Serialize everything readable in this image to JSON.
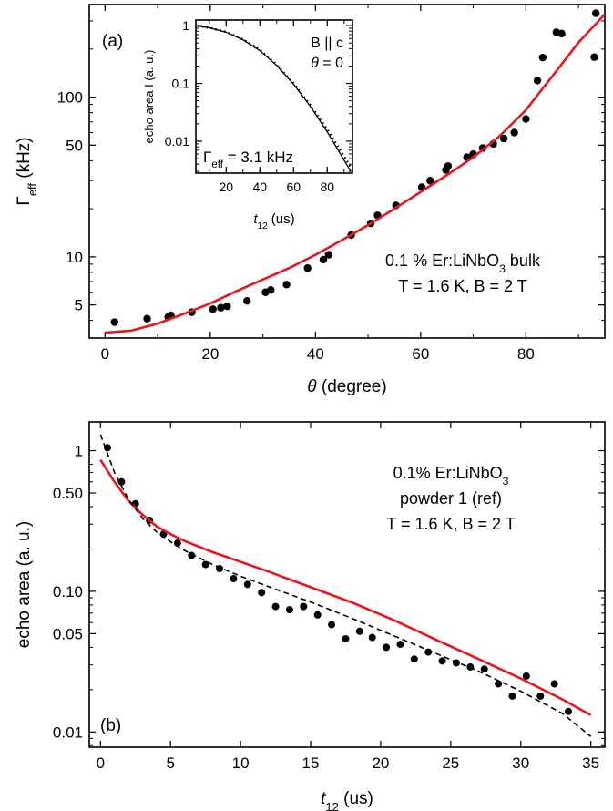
{
  "chart_data": [
    {
      "panel_label": "(a)",
      "type": "scatter",
      "xscale": "linear",
      "yscale": "log",
      "xlabel": "θ (degree)",
      "ylabel": "Γeff (kHz)",
      "xlim": [
        -3,
        95
      ],
      "ylim": [
        3.1,
        380
      ],
      "xticks": [
        0,
        20,
        40,
        60,
        80
      ],
      "yticks": [
        5,
        10,
        50,
        100
      ],
      "annotation": [
        "0.1 % Er:LiNbO3 bulk",
        "T = 1.6 K, B = 2 T"
      ],
      "series": [
        {
          "kind": "points",
          "color": "#000000",
          "x": [
            1.8,
            8,
            12,
            12.5,
            16.5,
            20.5,
            22,
            23.2,
            27,
            30.5,
            31.5,
            34.5,
            38.5,
            41.5,
            42.5,
            46.8,
            50.5,
            51.8,
            55.3,
            60.2,
            61.8,
            64.8,
            65.2,
            68.8,
            70,
            71.8,
            73.8,
            75.8,
            77.8,
            80,
            82.2,
            83.2,
            85.8,
            86.8,
            93,
            93.3
          ],
          "y": [
            3.9,
            4.1,
            4.2,
            4.3,
            4.5,
            4.7,
            4.8,
            4.9,
            5.3,
            6.0,
            6.2,
            6.7,
            8.5,
            9.6,
            10.3,
            13.7,
            16.2,
            18.2,
            21.0,
            27.3,
            30.0,
            35.0,
            37.0,
            42.0,
            44.0,
            48.0,
            51.0,
            55.0,
            60.0,
            73.0,
            127.0,
            177.0,
            255.0,
            250.0,
            178.0,
            335.0
          ]
        },
        {
          "kind": "fit",
          "color": "#e8161c",
          "x": [
            0,
            5,
            10,
            15,
            20,
            25,
            30,
            35,
            40,
            45,
            50,
            55,
            60,
            65,
            70,
            75,
            80,
            85,
            90,
            95
          ],
          "y": [
            3.35,
            3.45,
            3.82,
            4.4,
            5.1,
            6.1,
            7.2,
            8.5,
            10.3,
            12.7,
            15.8,
            20.0,
            25.5,
            32.5,
            42.0,
            57.0,
            83.0,
            135.0,
            220.0,
            330.0
          ]
        }
      ],
      "inset": {
        "type": "line",
        "xscale": "linear",
        "yscale": "log",
        "xlabel": "t12 (us)",
        "ylabel": "echo area I (a. u.)",
        "xlim": [
          2,
          95
        ],
        "ylim": [
          0.0028,
          1.25
        ],
        "xticks": [
          20,
          40,
          60,
          80
        ],
        "yticks": [
          0.01,
          0.1,
          1
        ],
        "ytick_labels": [
          "0.01",
          "0.1",
          "1"
        ],
        "annotation": [
          "B || c",
          "θ = 0",
          "Γeff = 3.1 kHz"
        ],
        "series": [
          {
            "kind": "dotted-data",
            "color": "#000000",
            "x": [
              3,
              10,
              20,
              30,
              40,
              50,
              60,
              70,
              80,
              90,
              94
            ],
            "y": [
              0.99,
              0.92,
              0.78,
              0.58,
              0.38,
              0.21,
              0.1,
              0.042,
              0.016,
              0.0055,
              0.0035
            ]
          },
          {
            "kind": "fit",
            "color": "#000000",
            "x": [
              3,
              10,
              20,
              30,
              40,
              50,
              60,
              70,
              80,
              90,
              94
            ],
            "y": [
              0.99,
              0.92,
              0.77,
              0.57,
              0.37,
              0.205,
              0.097,
              0.04,
              0.0145,
              0.0047,
              0.003
            ]
          }
        ]
      }
    },
    {
      "panel_label": "(b)",
      "type": "scatter",
      "xscale": "linear",
      "yscale": "log",
      "xlabel": "t12 (us)",
      "ylabel": "echo area (a. u.)",
      "xlim": [
        -0.8,
        36
      ],
      "ylim": [
        0.0078,
        1.6
      ],
      "xticks": [
        0,
        5,
        10,
        15,
        20,
        25,
        30,
        35
      ],
      "yticks": [
        0.01,
        0.05,
        0.1,
        0.5,
        1
      ],
      "ytick_labels": [
        "0.01",
        "0.05",
        "0.10",
        "0.50",
        "1"
      ],
      "annotation": [
        "0.1% Er:LiNbO3",
        "powder 1 (ref)",
        "T = 1.6 K, B = 2 T"
      ],
      "series": [
        {
          "kind": "points",
          "color": "#000000",
          "x": [
            0.5,
            1.5,
            2.5,
            3.5,
            4.5,
            5.5,
            6.5,
            7.5,
            8.5,
            9.5,
            10.5,
            11.5,
            12.5,
            13.5,
            14.5,
            15.5,
            16.5,
            17.5,
            18.5,
            19.4,
            20.4,
            21.4,
            22.4,
            23.4,
            24.4,
            25.4,
            26.4,
            27.4,
            28.4,
            29.4,
            30.4,
            31.4,
            32.4,
            33.4
          ],
          "y": [
            1.05,
            0.6,
            0.42,
            0.32,
            0.255,
            0.22,
            0.18,
            0.155,
            0.145,
            0.123,
            0.112,
            0.098,
            0.078,
            0.074,
            0.078,
            0.068,
            0.058,
            0.046,
            0.052,
            0.047,
            0.04,
            0.042,
            0.033,
            0.037,
            0.032,
            0.031,
            0.029,
            0.028,
            0.022,
            0.018,
            0.025,
            0.018,
            0.022,
            0.014
          ]
        },
        {
          "kind": "fit",
          "color": "#e8161c",
          "x": [
            0,
            1,
            2,
            3,
            4,
            5,
            6,
            8,
            10,
            12,
            15,
            18,
            21,
            24,
            27,
            30,
            33,
            35
          ],
          "y": [
            0.86,
            0.6,
            0.44,
            0.35,
            0.29,
            0.255,
            0.228,
            0.19,
            0.162,
            0.138,
            0.107,
            0.083,
            0.062,
            0.045,
            0.033,
            0.024,
            0.017,
            0.0132
          ]
        },
        {
          "kind": "fit-dashed",
          "color": "#000000",
          "x": [
            0,
            1,
            2,
            3,
            4,
            5,
            6,
            8,
            10,
            12,
            15,
            18,
            21,
            24,
            27,
            30,
            33,
            35
          ],
          "y": [
            1.3,
            0.7,
            0.45,
            0.33,
            0.265,
            0.225,
            0.195,
            0.155,
            0.128,
            0.108,
            0.084,
            0.064,
            0.048,
            0.036,
            0.027,
            0.0195,
            0.0135,
            0.0093
          ]
        }
      ]
    }
  ]
}
